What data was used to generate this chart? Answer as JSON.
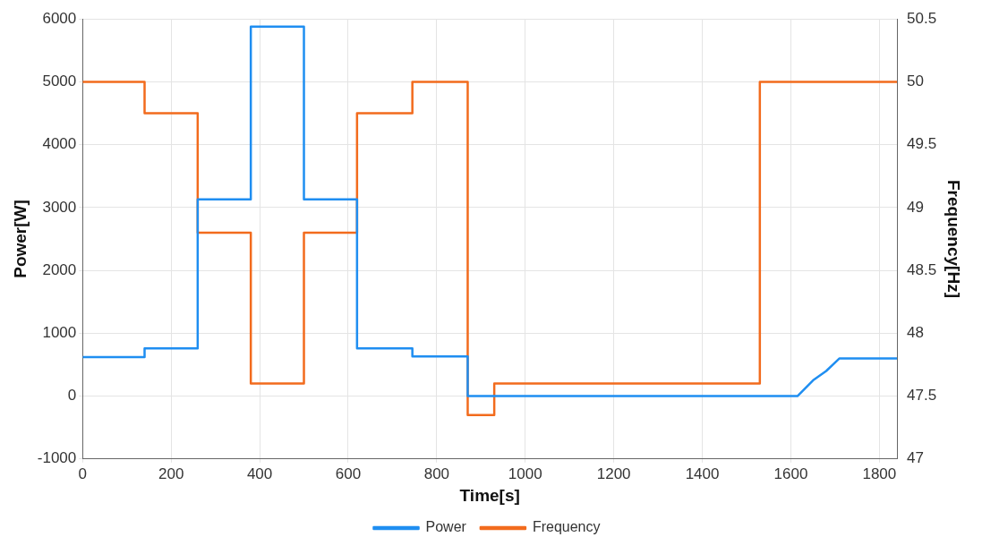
{
  "chart_data": {
    "type": "line",
    "xlabel": "Time[s]",
    "ylabel": "Power[W]",
    "y2label": "Frequency[Hz]",
    "xlim": [
      0,
      1840
    ],
    "xticks": [
      0,
      200,
      400,
      600,
      800,
      1000,
      1200,
      1400,
      1600,
      1800
    ],
    "ylim": [
      -1000,
      6000
    ],
    "yticks": [
      -1000,
      0,
      1000,
      2000,
      3000,
      4000,
      5000,
      6000
    ],
    "y2lim": [
      47,
      50.5
    ],
    "y2ticks": [
      47,
      47.5,
      48,
      48.5,
      49,
      49.5,
      50,
      50.5
    ],
    "grid": true,
    "legend": "bottom",
    "line_style": "solid",
    "marker": "none",
    "series": [
      {
        "name": "Power",
        "color": "#1f8ef1",
        "x": [
          0,
          140,
          140,
          260,
          260,
          380,
          380,
          500,
          500,
          620,
          620,
          745,
          745,
          870,
          870,
          1615,
          1650,
          1680,
          1710,
          1840
        ],
        "values": [
          620,
          620,
          760,
          760,
          3130,
          3130,
          5880,
          5880,
          3130,
          3130,
          760,
          760,
          630,
          630,
          0,
          0,
          250,
          400,
          600,
          600
        ]
      },
      {
        "name": "Frequency",
        "color": "#f26b1d",
        "axis": "y2",
        "x": [
          0,
          140,
          140,
          260,
          260,
          380,
          380,
          500,
          500,
          620,
          620,
          745,
          745,
          870,
          870,
          930,
          930,
          1530,
          1530,
          1840
        ],
        "values": [
          50,
          50,
          49.75,
          49.75,
          48.8,
          48.8,
          47.6,
          47.6,
          48.8,
          48.8,
          49.75,
          49.75,
          50,
          50,
          47.35,
          47.35,
          47.6,
          47.6,
          50,
          50
        ]
      }
    ]
  }
}
